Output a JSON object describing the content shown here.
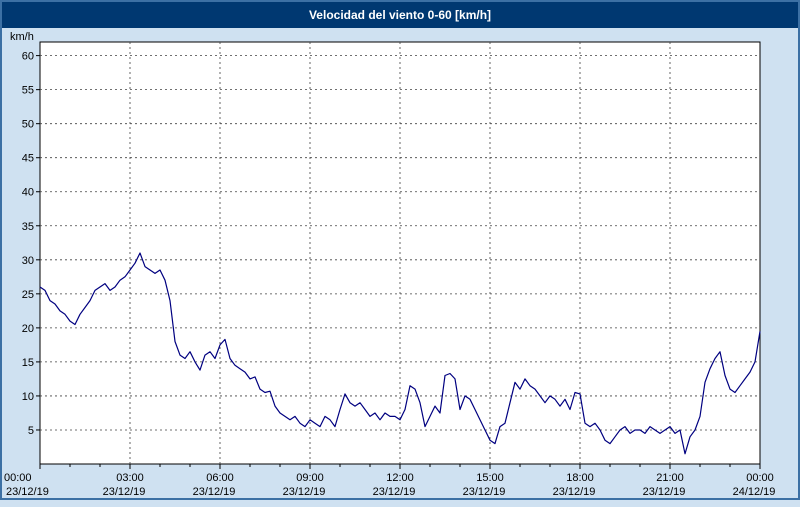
{
  "title_bar": {
    "title": "Velocidad del viento 0-60 [km/h]"
  },
  "chart_data": {
    "type": "line",
    "title": "Velocidad del viento 0-60 [km/h]",
    "xlabel": "",
    "ylabel": "km/h",
    "ylim": [
      0,
      62
    ],
    "xlim_hours": [
      0,
      24
    ],
    "grid": "dashed",
    "legend": "none",
    "line_color": "#000080",
    "y_ticks": [
      5,
      10,
      15,
      20,
      25,
      30,
      35,
      40,
      45,
      50,
      55,
      60
    ],
    "x_ticks": [
      {
        "hour": 0,
        "time": "00:00",
        "date": "23/12/19"
      },
      {
        "hour": 3,
        "time": "03:00",
        "date": "23/12/19"
      },
      {
        "hour": 6,
        "time": "06:00",
        "date": "23/12/19"
      },
      {
        "hour": 9,
        "time": "09:00",
        "date": "23/12/19"
      },
      {
        "hour": 12,
        "time": "12:00",
        "date": "23/12/19"
      },
      {
        "hour": 15,
        "time": "15:00",
        "date": "23/12/19"
      },
      {
        "hour": 18,
        "time": "18:00",
        "date": "23/12/19"
      },
      {
        "hour": 21,
        "time": "21:00",
        "date": "23/12/19"
      },
      {
        "hour": 24,
        "time": "00:00",
        "date": "24/12/19"
      }
    ],
    "x_step_minutes": 10,
    "series": [
      {
        "name": "Velocidad del viento [km/h]",
        "values": [
          26,
          25.5,
          24,
          23.5,
          22.5,
          22,
          21,
          20.5,
          22,
          23,
          24,
          25.5,
          26,
          26.5,
          25.5,
          26,
          27,
          27.5,
          28.5,
          29.5,
          31,
          29,
          28.5,
          28,
          28.5,
          27,
          24,
          18,
          16,
          15.5,
          16.5,
          15,
          13.8,
          16,
          16.5,
          15.5,
          17.5,
          18.3,
          15.5,
          14.5,
          14,
          13.5,
          12.5,
          12.8,
          11,
          10.5,
          10.7,
          8.5,
          7.5,
          7,
          6.5,
          7,
          6,
          5.5,
          6.5,
          6,
          5.5,
          7,
          6.5,
          5.5,
          8,
          10.3,
          9,
          8.5,
          9,
          8,
          7,
          7.5,
          6.5,
          7.5,
          7,
          7,
          6.5,
          8,
          11.5,
          11,
          9,
          5.5,
          7,
          8.5,
          7.5,
          13,
          13.3,
          12.5,
          8,
          10,
          9.5,
          8,
          6.5,
          5,
          3.5,
          3,
          5.5,
          6,
          9,
          12,
          11,
          12.5,
          11.5,
          11,
          10,
          9,
          10,
          9.5,
          8.5,
          9.5,
          8,
          10.5,
          10.3,
          6,
          5.5,
          6,
          5,
          3.5,
          3,
          4,
          5,
          5.5,
          4.5,
          5,
          5,
          4.5,
          5.5,
          5,
          4.5,
          5,
          5.5,
          4.5,
          5,
          1.5,
          4,
          5,
          7,
          12,
          14,
          15.5,
          16.5,
          13,
          11,
          10.5,
          11.5,
          12.5,
          13.5,
          15,
          19.5
        ]
      }
    ]
  },
  "colors": {
    "window_background": "#cfe1f1",
    "window_border": "#3c70a4",
    "title_bar_background": "#003871",
    "title_text": "#ffffff",
    "plot_background": "#ffffff",
    "grid_color": "#404040",
    "axis_color": "#000000"
  }
}
